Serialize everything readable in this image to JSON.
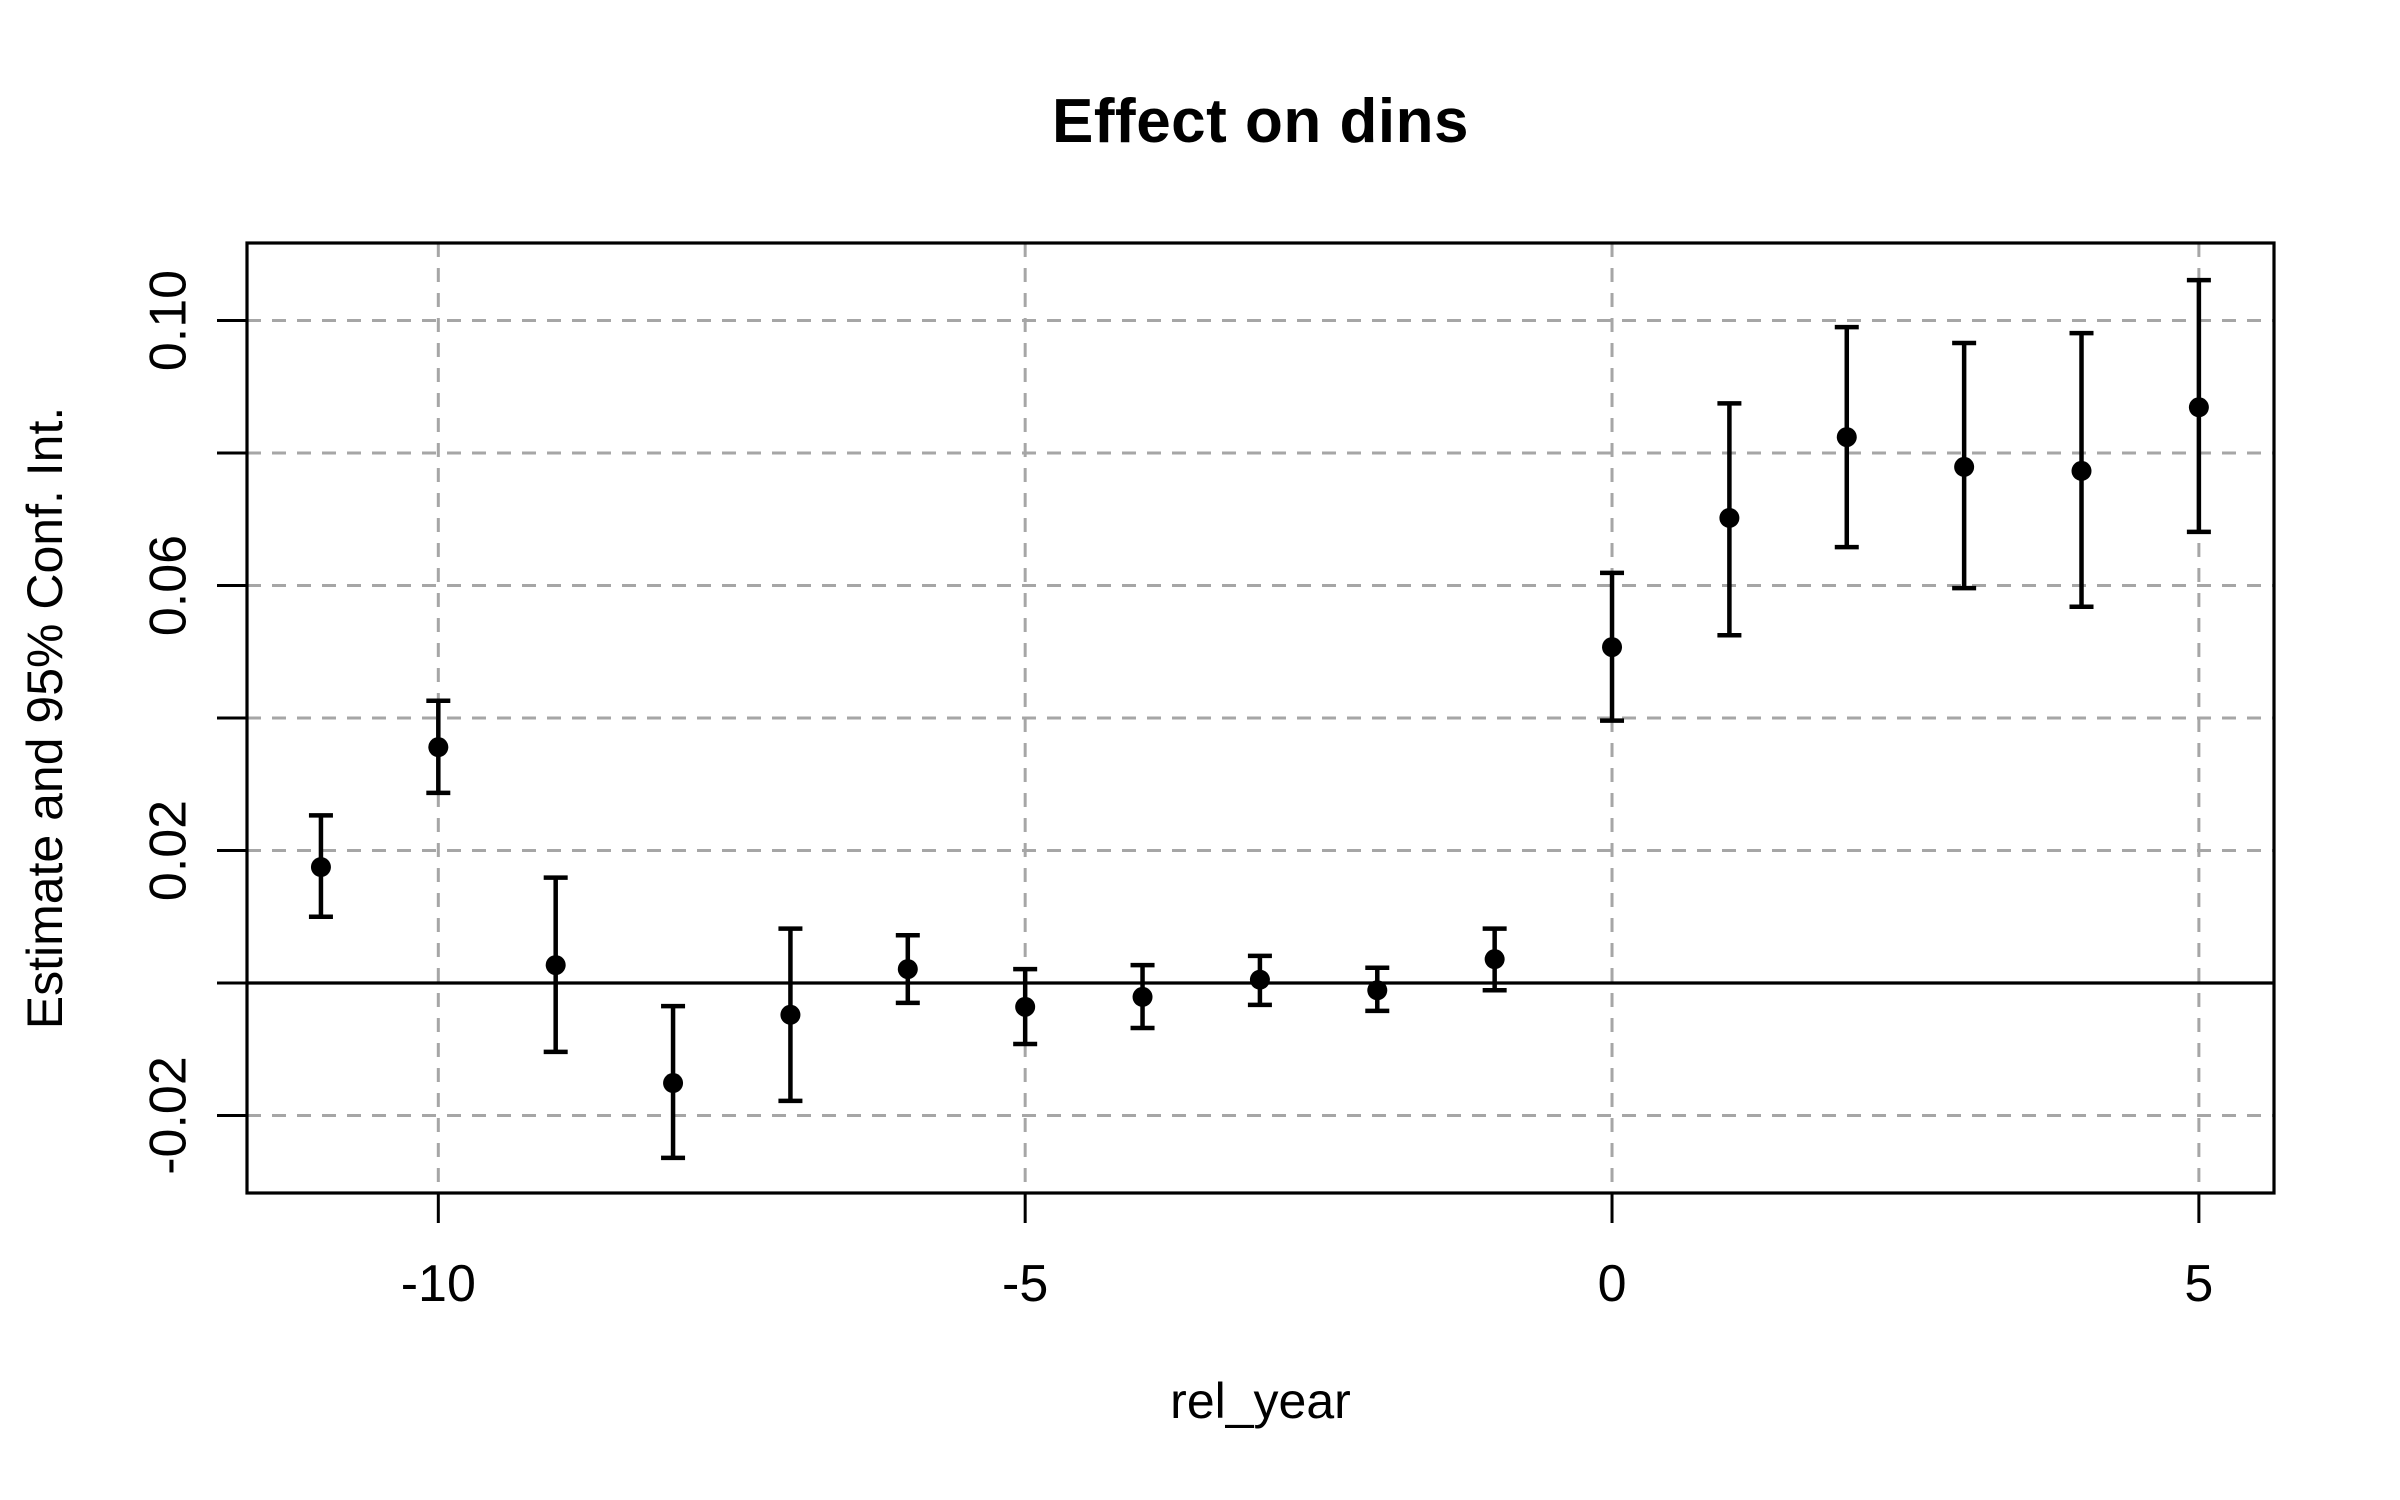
{
  "chart_data": {
    "type": "scatter",
    "subtype": "event-study-errorbar",
    "title": "Effect on dins",
    "xlabel": "rel_year",
    "ylabel": "Estimate and 95% Conf. Int.",
    "x": [
      -11,
      -10,
      -9,
      -8,
      -7,
      -6,
      -5,
      -4,
      -3,
      -2,
      -1,
      0,
      1,
      2,
      3,
      4,
      5
    ],
    "series": [
      {
        "name": "estimate",
        "values": [
          0.0175,
          0.0356,
          0.0027,
          -0.0151,
          -0.0048,
          0.0021,
          -0.0036,
          -0.0021,
          0.0005,
          -0.0011,
          0.0036,
          0.0507,
          0.0702,
          0.0824,
          0.0779,
          0.0773,
          0.0869
        ]
      },
      {
        "name": "ci_lower",
        "values": [
          0.01,
          0.0287,
          -0.0104,
          -0.0264,
          -0.0178,
          -0.003,
          -0.0092,
          -0.0068,
          -0.0033,
          -0.0042,
          -0.0011,
          0.0396,
          0.0525,
          0.0658,
          0.0596,
          0.0568,
          0.0681
        ]
      },
      {
        "name": "ci_upper",
        "values": [
          0.0253,
          0.0426,
          0.0159,
          -0.0035,
          0.0082,
          0.0072,
          0.0021,
          0.0027,
          0.0041,
          0.0023,
          0.0082,
          0.0619,
          0.0875,
          0.099,
          0.0966,
          0.0981,
          0.1061
        ]
      }
    ],
    "xlim": [
      -11.63,
      5.64
    ],
    "ylim": [
      -0.0317,
      0.1117
    ],
    "x_ticks": [
      {
        "value": -10,
        "label": "-10"
      },
      {
        "value": -5,
        "label": "-5"
      },
      {
        "value": 0,
        "label": "0"
      },
      {
        "value": 5,
        "label": "5"
      }
    ],
    "y_ticks": [
      {
        "value": -0.02,
        "label": "-0.02"
      },
      {
        "value": 0.0,
        "label": ""
      },
      {
        "value": 0.02,
        "label": "0.02"
      },
      {
        "value": 0.04,
        "label": ""
      },
      {
        "value": 0.06,
        "label": "0.06"
      },
      {
        "value": 0.08,
        "label": ""
      },
      {
        "value": 0.1,
        "label": "0.10"
      }
    ],
    "grid": {
      "on": true,
      "style": "dashed",
      "color": "#a6a6a6",
      "x_lines": [
        -10,
        -5,
        0,
        5
      ],
      "y_lines": [
        -0.02,
        0.0,
        0.02,
        0.04,
        0.06,
        0.08,
        0.1
      ]
    },
    "reference_line_y": 0,
    "marker_color": "#000000",
    "line_color": "#000000",
    "background": "#ffffff",
    "legend": "none"
  }
}
